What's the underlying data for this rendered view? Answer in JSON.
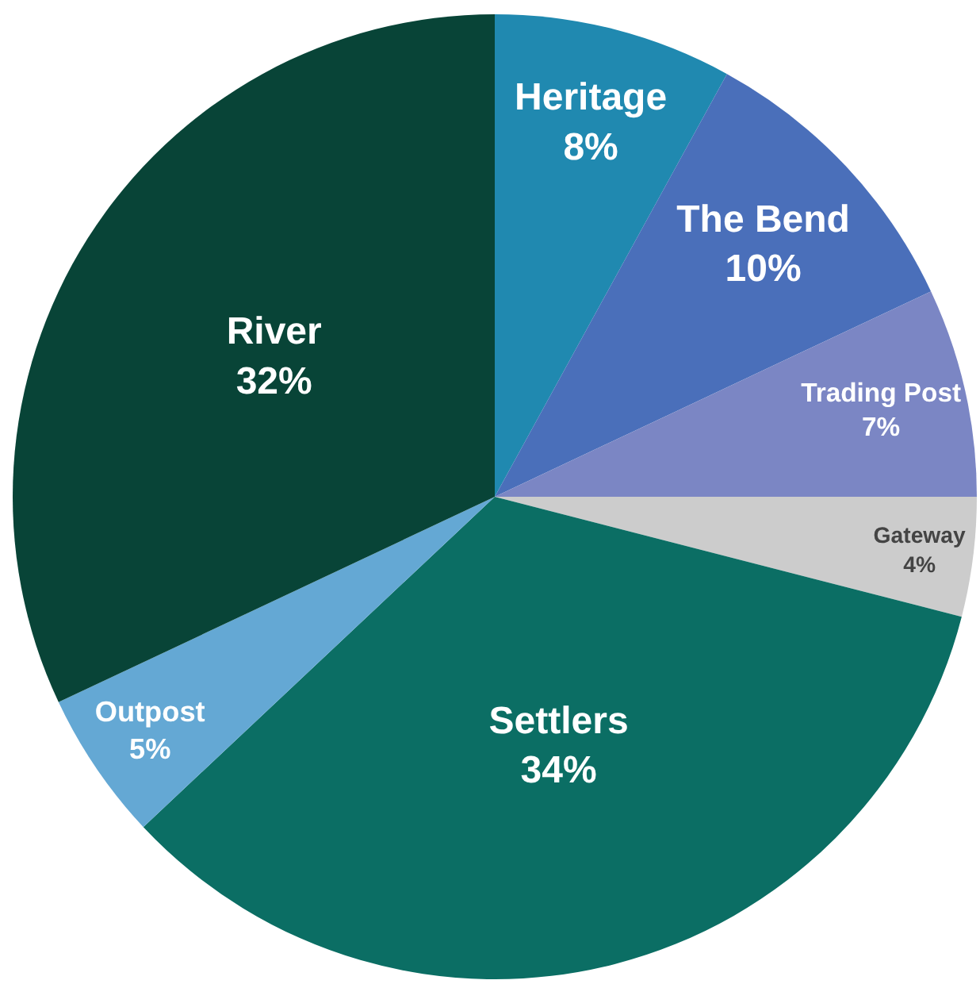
{
  "chart_data": {
    "type": "pie",
    "categories": [
      "Heritage",
      "The Bend",
      "Trading Post",
      "Gateway",
      "Settlers",
      "Outpost",
      "River"
    ],
    "values": [
      8,
      10,
      7,
      4,
      34,
      5,
      32
    ],
    "value_labels": [
      "8%",
      "10%",
      "7%",
      "4%",
      "34%",
      "5%",
      "32%"
    ],
    "colors": [
      "#2089b0",
      "#4a6fba",
      "#7b86c4",
      "#cccccc",
      "#0b6e64",
      "#64a8d4",
      "#084437"
    ],
    "legend": false
  }
}
